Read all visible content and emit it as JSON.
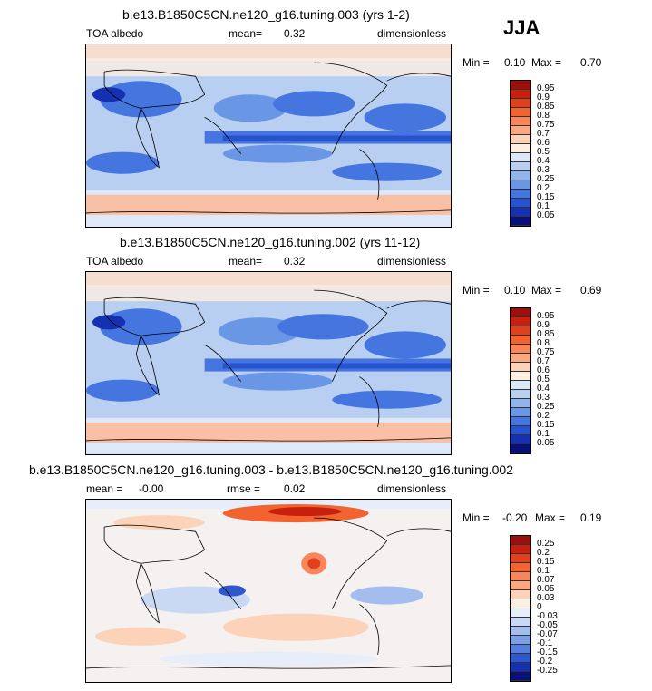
{
  "season": "JJA",
  "panels": [
    {
      "title": "b.e13.B1850C5CN.ne120_g16.tuning.003 (yrs 1-2)",
      "variable": "TOA albedo",
      "stat_label": "mean=",
      "stat_value": "0.32",
      "units": "dimensionless",
      "min_label": "Min =",
      "min_value": "0.10",
      "max_label": "Max =",
      "max_value": "0.70",
      "colorbar": {
        "levels": [
          "0.95",
          "0.9",
          "0.85",
          "0.8",
          "0.75",
          "0.7",
          "0.6",
          "0.5",
          "0.4",
          "0.3",
          "0.25",
          "0.2",
          "0.15",
          "0.1",
          "0.05"
        ],
        "colors": [
          "#9b0f0f",
          "#c8200f",
          "#e0401c",
          "#f2632f",
          "#f9865a",
          "#fba882",
          "#fcd2b8",
          "#fdeee2",
          "#dde8f8",
          "#b9cff1",
          "#90b4ec",
          "#6a96e6",
          "#4575de",
          "#2752d0",
          "#1530b0",
          "#08107a"
        ]
      }
    },
    {
      "title": "b.e13.B1850C5CN.ne120_g16.tuning.002 (yrs 11-12)",
      "variable": "TOA albedo",
      "stat_label": "mean=",
      "stat_value": "0.32",
      "units": "dimensionless",
      "min_label": "Min =",
      "min_value": "0.10",
      "max_label": "Max =",
      "max_value": "0.69",
      "colorbar": {
        "levels": [
          "0.95",
          "0.9",
          "0.85",
          "0.8",
          "0.75",
          "0.7",
          "0.6",
          "0.5",
          "0.4",
          "0.3",
          "0.25",
          "0.2",
          "0.15",
          "0.1",
          "0.05"
        ],
        "colors": [
          "#9b0f0f",
          "#c8200f",
          "#e0401c",
          "#f2632f",
          "#f9865a",
          "#fba882",
          "#fcd2b8",
          "#fdeee2",
          "#dde8f8",
          "#b9cff1",
          "#90b4ec",
          "#6a96e6",
          "#4575de",
          "#2752d0",
          "#1530b0",
          "#08107a"
        ]
      }
    },
    {
      "title": "b.e13.B1850C5CN.ne120_g16.tuning.003 - b.e13.B1850C5CN.ne120_g16.tuning.002",
      "variable": "mean =",
      "stat_label": "rmse =",
      "stat_value": "0.02",
      "mean_value": "-0.00",
      "units": "dimensionless",
      "min_label": "Min =",
      "min_value": "-0.20",
      "max_label": "Max =",
      "max_value": "0.19",
      "colorbar": {
        "levels": [
          "0.25",
          "0.2",
          "0.15",
          "0.1",
          "0.07",
          "0.05",
          "0.03",
          "0",
          "-0.03",
          "-0.05",
          "-0.07",
          "-0.1",
          "-0.15",
          "-0.2",
          "-0.25"
        ],
        "colors": [
          "#9b0f0f",
          "#c8200f",
          "#e0401c",
          "#f2632f",
          "#f9865a",
          "#fba882",
          "#fcd2b8",
          "#fdeee2",
          "#e8eef9",
          "#c9d8f3",
          "#a3bdee",
          "#7c9fe8",
          "#547fe0",
          "#2f58d0",
          "#1530b0",
          "#08107a"
        ]
      }
    }
  ]
}
